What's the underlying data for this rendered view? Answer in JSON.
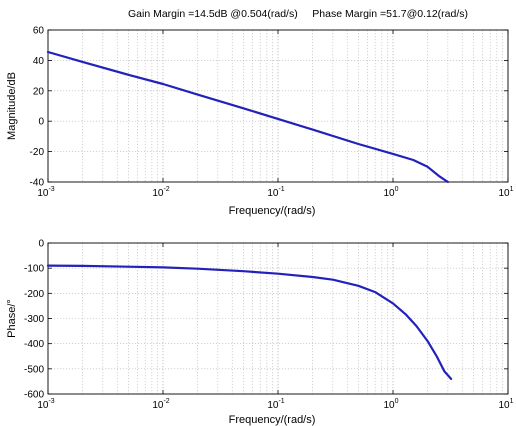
{
  "title": "Gain Margin =14.5dB @0.504(rad/s)     Phase Margin =51.7@0.12(rad/s)",
  "colors": {
    "curve": "#2222bb",
    "grid": "#b8b8b8",
    "axis": "#000000"
  },
  "chart_data": [
    {
      "type": "line",
      "id": "magnitude",
      "xscale": "log",
      "xlim": [
        0.001,
        10
      ],
      "ylim": [
        -40,
        60
      ],
      "xlabel": "Frequency/(rad/s)",
      "ylabel": "Magnitude/dB",
      "grid": true,
      "xticks": [
        {
          "value": 0.001,
          "base": "10",
          "exp": "-3"
        },
        {
          "value": 0.01,
          "base": "10",
          "exp": "-2"
        },
        {
          "value": 0.1,
          "base": "10",
          "exp": "-1"
        },
        {
          "value": 1,
          "base": "10",
          "exp": "0"
        },
        {
          "value": 10,
          "base": "10",
          "exp": "1"
        }
      ],
      "yticks": [
        "-40",
        "-20",
        "0",
        "20",
        "40",
        "60"
      ],
      "series": [
        {
          "x": [
            0.001,
            0.002,
            0.005,
            0.01,
            0.02,
            0.05,
            0.1,
            0.2,
            0.5,
            1,
            1.5,
            2,
            2.5,
            3
          ],
          "y": [
            45.5,
            39,
            30.5,
            24.5,
            17.5,
            8.5,
            1.5,
            -5.5,
            -15,
            -21.5,
            -25.5,
            -30,
            -36,
            -40
          ]
        }
      ]
    },
    {
      "type": "line",
      "id": "phase",
      "xscale": "log",
      "xlim": [
        0.001,
        10
      ],
      "ylim": [
        -600,
        0
      ],
      "xlabel": "Frequency/(rad/s)",
      "ylabel": "Phase/°",
      "grid": true,
      "xticks": [
        {
          "value": 0.001,
          "base": "10",
          "exp": "-3"
        },
        {
          "value": 0.01,
          "base": "10",
          "exp": "-2"
        },
        {
          "value": 0.1,
          "base": "10",
          "exp": "-1"
        },
        {
          "value": 1,
          "base": "10",
          "exp": "0"
        },
        {
          "value": 10,
          "base": "10",
          "exp": "1"
        }
      ],
      "yticks": [
        "-600",
        "-500",
        "-400",
        "-300",
        "-200",
        "-100",
        "0"
      ],
      "series": [
        {
          "x": [
            0.001,
            0.002,
            0.005,
            0.01,
            0.02,
            0.05,
            0.1,
            0.2,
            0.3,
            0.5,
            0.7,
            1,
            1.3,
            1.6,
            2,
            2.4,
            2.8,
            3.2
          ],
          "y": [
            -90,
            -91,
            -94,
            -97,
            -102,
            -112,
            -122,
            -135,
            -146,
            -170,
            -195,
            -240,
            -285,
            -330,
            -390,
            -450,
            -510,
            -540
          ]
        }
      ]
    }
  ]
}
